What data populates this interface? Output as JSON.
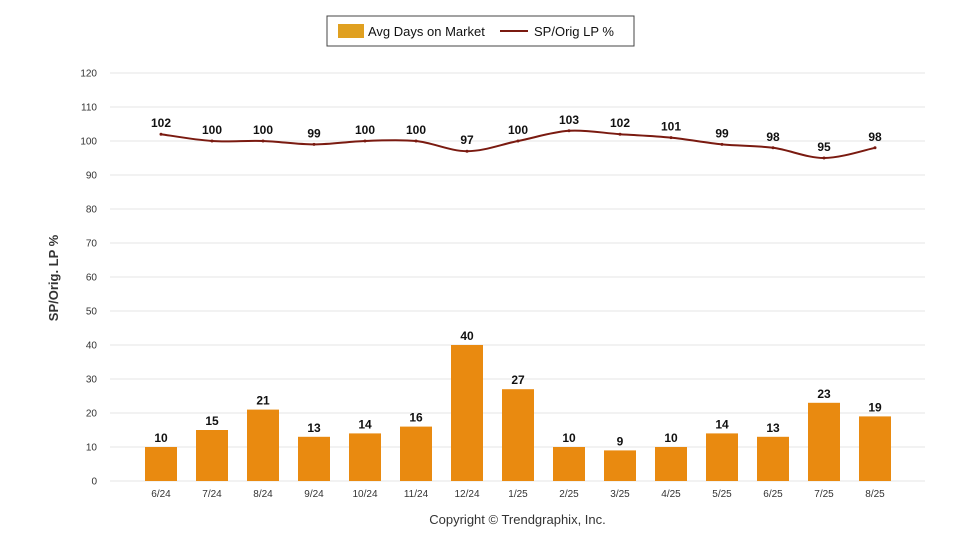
{
  "legend": {
    "bar_label": "Avg Days on Market",
    "line_label": "SP/Orig LP %"
  },
  "footer": {
    "copyright": "Copyright © Trendgraphix, Inc."
  },
  "colors": {
    "bar": "#E98A10",
    "bar_legend": "#E0A020",
    "line": "#7A1A10",
    "grid": "#E6E6E6"
  },
  "chart_data": {
    "type": "bar",
    "title": "",
    "xlabel": "",
    "ylabel": "SP/Orig. LP %",
    "ylim": [
      0,
      120
    ],
    "yticks": [
      0,
      10,
      20,
      30,
      40,
      50,
      60,
      70,
      80,
      90,
      100,
      110,
      120
    ],
    "grid": true,
    "legend_position": "top-center",
    "categories": [
      "6/24",
      "7/24",
      "8/24",
      "9/24",
      "10/24",
      "11/24",
      "12/24",
      "1/25",
      "2/25",
      "3/25",
      "4/25",
      "5/25",
      "6/25",
      "7/25",
      "8/25"
    ],
    "series": [
      {
        "name": "Avg Days on Market",
        "type": "bar",
        "values": [
          10,
          15,
          21,
          13,
          14,
          16,
          40,
          27,
          10,
          9,
          10,
          14,
          13,
          23,
          19
        ]
      },
      {
        "name": "SP/Orig LP %",
        "type": "line",
        "values": [
          102,
          100,
          100,
          99,
          100,
          100,
          97,
          100,
          103,
          102,
          101,
          99,
          98,
          95,
          98
        ]
      }
    ]
  }
}
